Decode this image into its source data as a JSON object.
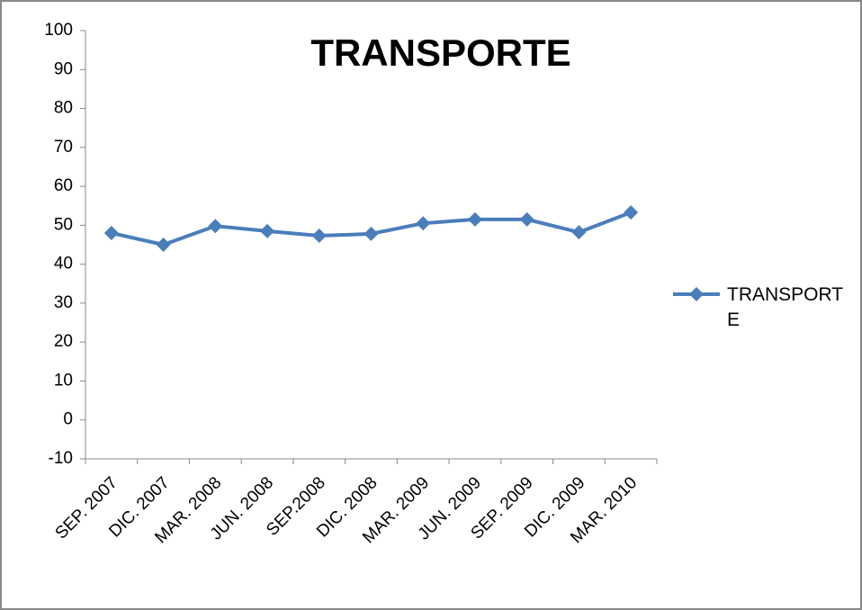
{
  "chart_data": {
    "type": "line",
    "title": "TRANSPORTE",
    "categories": [
      "SEP. 2007",
      "DIC. 2007",
      "MAR. 2008",
      "JUN. 2008",
      "SEP.2008",
      "DIC. 2008",
      "MAR. 2009",
      "JUN. 2009",
      "SEP. 2009",
      "DIC. 2009",
      "MAR. 2010"
    ],
    "series": [
      {
        "name": "TRANSPORTE",
        "color": "#4a7ebb",
        "values": [
          48,
          45,
          49.8,
          48.5,
          47.3,
          47.8,
          50.5,
          51.5,
          51.5,
          48.2,
          53.3
        ]
      }
    ],
    "ylim": [
      -10,
      100
    ],
    "yticks": [
      -10,
      0,
      10,
      20,
      30,
      40,
      50,
      60,
      70,
      80,
      90,
      100
    ],
    "grid": false,
    "legend": "right"
  }
}
